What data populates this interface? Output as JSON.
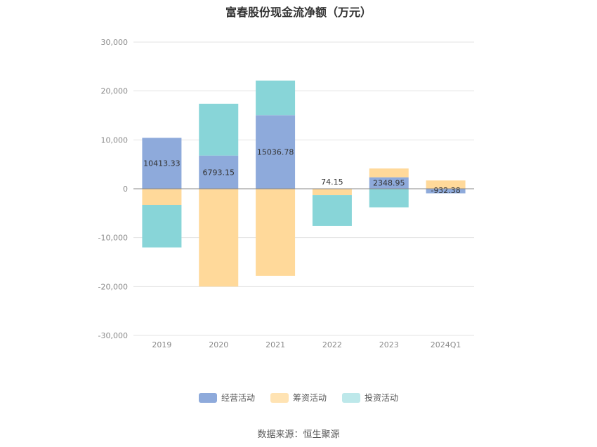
{
  "chart_data": {
    "type": "bar",
    "stacked": true,
    "title": "富春股份现金流净额（万元）",
    "categories": [
      "2019",
      "2020",
      "2021",
      "2022",
      "2023",
      "2024Q1"
    ],
    "series": [
      {
        "name": "经营活动",
        "color": "#8eaadb",
        "values": [
          10413.33,
          6793.15,
          15036.78,
          74.15,
          2348.95,
          -932.38
        ]
      },
      {
        "name": "筹资活动",
        "color": "#ffd99a",
        "values": [
          -3300,
          -20000,
          -17800,
          -1300,
          1800,
          1700
        ]
      },
      {
        "name": "投资活动",
        "color": "#88d5d8",
        "values": [
          -8700,
          10600,
          7100,
          -6300,
          -3800,
          0
        ]
      }
    ],
    "data_labels": [
      "10413.33",
      "6793.15",
      "15036.78",
      "74.15",
      "2348.95",
      "-932.38"
    ],
    "y_ticks": [
      "30,000",
      "20,000",
      "10,000",
      "0",
      "-10,000",
      "-20,000",
      "-30,000"
    ],
    "ylim": [
      -30000,
      30000
    ],
    "grid": true,
    "legend_position": "bottom",
    "xlabel": "",
    "ylabel": ""
  },
  "legend_colors": {
    "经营活动": "#8eaadb",
    "筹资活动": "#ffe3b3",
    "投资活动": "#bde8ea"
  },
  "source": "数据来源：恒生聚源"
}
